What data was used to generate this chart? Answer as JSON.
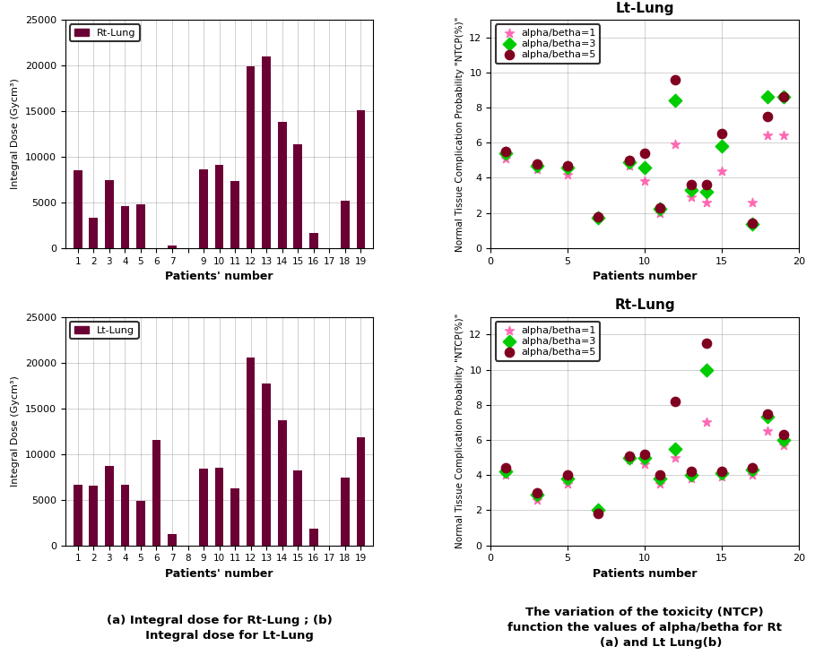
{
  "rt_lung_dose": {
    "patients": [
      1,
      2,
      3,
      4,
      5,
      6,
      7,
      8,
      9,
      10,
      11,
      12,
      13,
      14,
      15,
      16,
      17,
      18,
      19
    ],
    "values": [
      8500,
      3300,
      7400,
      4600,
      4800,
      0,
      300,
      0,
      8600,
      9100,
      7300,
      19900,
      21000,
      13800,
      11400,
      1700,
      0,
      5200,
      15100
    ],
    "color": "#6B0035",
    "label": "Rt-Lung",
    "ylabel": "Integral Dose (Gycm³)",
    "xlabel": "Patients' number",
    "ylim": [
      0,
      25000
    ]
  },
  "lt_lung_dose": {
    "patients": [
      1,
      2,
      3,
      4,
      5,
      6,
      7,
      8,
      9,
      10,
      11,
      12,
      13,
      14,
      15,
      16,
      17,
      18,
      19
    ],
    "values": [
      6600,
      6500,
      8700,
      6600,
      4900,
      11500,
      1200,
      0,
      8400,
      8500,
      6200,
      20600,
      17700,
      13700,
      8200,
      1800,
      0,
      7400,
      11800
    ],
    "color": "#6B0035",
    "label": "Lt-Lung",
    "ylabel": "Integral Dose (Gycm³)",
    "xlabel": "Patients' number",
    "ylim": [
      0,
      25000
    ]
  },
  "lt_lung_ntcp": {
    "title": "Lt-Lung",
    "xlabel": "Patients number",
    "ylabel": "Normal Tissue Complication Probability \"NTCP(%)\"",
    "ylim": [
      0,
      13
    ],
    "xlim": [
      0,
      20
    ],
    "series1": {
      "label": "alpha/betha=1",
      "color": "#FF69B4",
      "marker": "*",
      "x": [
        1,
        3,
        5,
        7,
        9,
        10,
        11,
        12,
        13,
        14,
        15,
        17,
        18,
        19
      ],
      "y": [
        5.1,
        4.5,
        4.2,
        1.75,
        4.7,
        3.8,
        2.0,
        5.9,
        2.9,
        2.6,
        4.4,
        2.6,
        6.4,
        6.4
      ]
    },
    "series2": {
      "label": "alpha/betha=3",
      "color": "#00CC00",
      "marker": "D",
      "x": [
        1,
        3,
        5,
        7,
        9,
        10,
        11,
        12,
        13,
        14,
        15,
        17,
        18,
        19
      ],
      "y": [
        5.4,
        4.7,
        4.6,
        1.75,
        4.9,
        4.6,
        2.25,
        8.4,
        3.3,
        3.2,
        5.8,
        1.35,
        8.6,
        8.6
      ]
    },
    "series3": {
      "label": "alpha/betha=5",
      "color": "#800020",
      "marker": "o",
      "x": [
        1,
        3,
        5,
        7,
        9,
        10,
        11,
        12,
        13,
        14,
        15,
        17,
        18,
        19
      ],
      "y": [
        5.5,
        4.8,
        4.7,
        1.8,
        5.0,
        5.4,
        2.3,
        9.6,
        3.6,
        3.6,
        6.5,
        1.4,
        7.5,
        8.6
      ]
    }
  },
  "rt_lung_ntcp": {
    "title": "Rt-Lung",
    "xlabel": "Patients number",
    "ylabel": "Normal Tissue Complication Probability \"NTCP(%)\"",
    "ylim": [
      0,
      13
    ],
    "xlim": [
      0,
      20
    ],
    "series1": {
      "label": "alpha/betha=1",
      "color": "#FF69B4",
      "marker": "*",
      "x": [
        1,
        3,
        5,
        7,
        9,
        10,
        11,
        12,
        13,
        14,
        15,
        17,
        18,
        19
      ],
      "y": [
        4.0,
        2.6,
        3.5,
        1.9,
        4.9,
        4.6,
        3.5,
        5.0,
        3.8,
        7.0,
        3.9,
        4.0,
        6.5,
        5.7
      ]
    },
    "series2": {
      "label": "alpha/betha=3",
      "color": "#00CC00",
      "marker": "D",
      "x": [
        1,
        3,
        5,
        7,
        9,
        10,
        11,
        12,
        13,
        14,
        15,
        17,
        18,
        19
      ],
      "y": [
        4.2,
        2.9,
        3.8,
        2.0,
        5.0,
        5.0,
        3.8,
        5.5,
        4.0,
        10.0,
        4.1,
        4.3,
        7.3,
        6.0
      ]
    },
    "series3": {
      "label": "alpha/betha=5",
      "color": "#800020",
      "marker": "o",
      "x": [
        1,
        3,
        5,
        7,
        9,
        10,
        11,
        12,
        13,
        14,
        15,
        17,
        18,
        19
      ],
      "y": [
        4.4,
        3.0,
        4.0,
        1.8,
        5.1,
        5.2,
        4.0,
        8.2,
        4.2,
        11.5,
        4.2,
        4.4,
        7.5,
        6.3
      ]
    }
  },
  "caption_left": "(a) Integral dose for Rt-Lung ; (b)\n     Integral dose for Lt-Lung",
  "caption_right": "The variation of the toxicity (NTCP)\nfunction the values of alpha/betha for Rt\n        (a) and Lt Lung(b)",
  "bar_width": 0.55,
  "xtick_labels_rt": [
    "1",
    "2",
    "3",
    "4",
    "5",
    "6",
    "7",
    "",
    "9",
    "10",
    "11",
    "12",
    "13",
    "14",
    "15",
    "16",
    "17",
    "18",
    "19"
  ],
  "xtick_labels_lt": [
    "1",
    "2",
    "3",
    "4",
    "5",
    "6",
    "7",
    "8",
    "9",
    "10",
    "11",
    "12",
    "13",
    "14",
    "15",
    "16",
    "17",
    "18",
    "19"
  ]
}
